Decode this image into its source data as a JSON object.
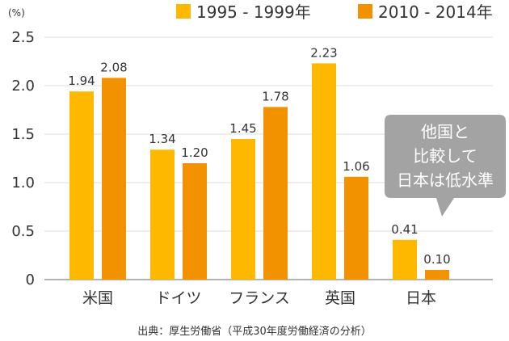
{
  "chart_data": {
    "type": "bar",
    "categories": [
      "米国",
      "ドイツ",
      "フランス",
      "英国",
      "日本"
    ],
    "series": [
      {
        "name": "1995 - 1999年",
        "values": [
          1.94,
          1.34,
          1.45,
          2.23,
          0.41
        ],
        "color": "#FFB800"
      },
      {
        "name": "2010 - 2014年",
        "values": [
          2.08,
          1.2,
          1.78,
          1.06,
          0.1
        ],
        "color": "#F39200"
      }
    ],
    "ylabel": "(%)",
    "ylim": [
      0,
      2.5
    ],
    "yticks": [
      0,
      0.5,
      1.0,
      1.5,
      2.0,
      2.5
    ],
    "ytick_labels": [
      "0",
      "0.5",
      "1.0",
      "1.5",
      "2.0",
      "2.5"
    ],
    "grid": true,
    "legend": "top",
    "annotation": {
      "lines": [
        "他国と",
        "比較して",
        "日本は低水準"
      ],
      "color": "#A3A3A3"
    },
    "source": "出典：厚生労働省（平成30年度労働経済の分析）"
  }
}
